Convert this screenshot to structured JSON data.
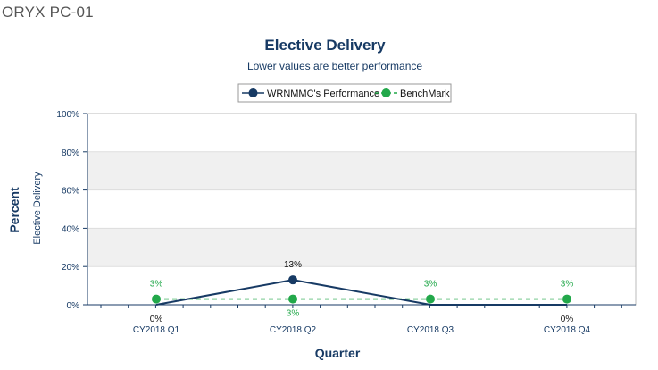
{
  "page": {
    "header": "ORYX PC-01"
  },
  "chart_data": {
    "type": "line",
    "title": "Elective Delivery",
    "subtitle": "Lower values are better performance",
    "xlabel": "Quarter",
    "ylabel": "Percent",
    "ylabel_secondary": "Elective Delivery",
    "categories": [
      "CY2018 Q1",
      "CY2018 Q2",
      "CY2018 Q3",
      "CY2018 Q4"
    ],
    "ylim": [
      0,
      100
    ],
    "yticks": [
      0,
      20,
      40,
      60,
      80,
      100
    ],
    "ytick_labels": [
      "0%",
      "20%",
      "40%",
      "60%",
      "80%",
      "100%"
    ],
    "legend_position": "top-center",
    "band_color": "#f0f0f0",
    "series": [
      {
        "name": "WRNMMC's Performance",
        "values": [
          0,
          13,
          0,
          0
        ],
        "labels": [
          "0%",
          "13%",
          "",
          "0%"
        ],
        "color": "#173a64",
        "style": "solid"
      },
      {
        "name": "BenchMark",
        "values": [
          3,
          3,
          3,
          3
        ],
        "labels": [
          "3%",
          "3%",
          "3%",
          "3%"
        ],
        "color": "#22a84a",
        "style": "dashed"
      }
    ]
  }
}
